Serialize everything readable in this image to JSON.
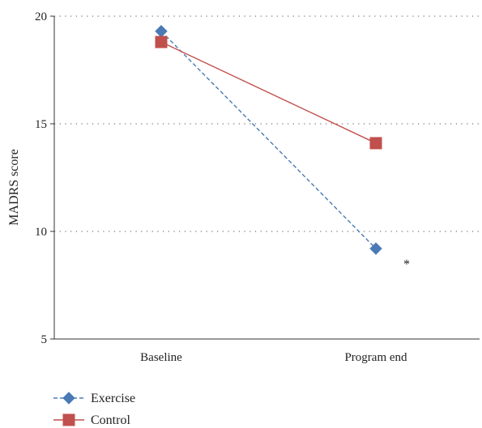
{
  "chart_data": {
    "type": "line",
    "categories": [
      "Baseline",
      "Program end"
    ],
    "ylabel": "MADRS score",
    "ylim": [
      5,
      20
    ],
    "yticks": [
      5,
      10,
      15,
      20
    ],
    "grid": "horizontal dotted",
    "legend_position": "bottom-left",
    "series": [
      {
        "name": "Exercise",
        "values": [
          19.3,
          9.2
        ],
        "color": "#4a7ab5",
        "marker": "diamond",
        "line_style": "dashed"
      },
      {
        "name": "Control",
        "values": [
          18.8,
          14.1
        ],
        "color": "#c0504d",
        "marker": "square",
        "line_style": "solid"
      }
    ],
    "annotations": [
      {
        "text": "*",
        "series": "Exercise",
        "category": "Program end"
      }
    ]
  }
}
